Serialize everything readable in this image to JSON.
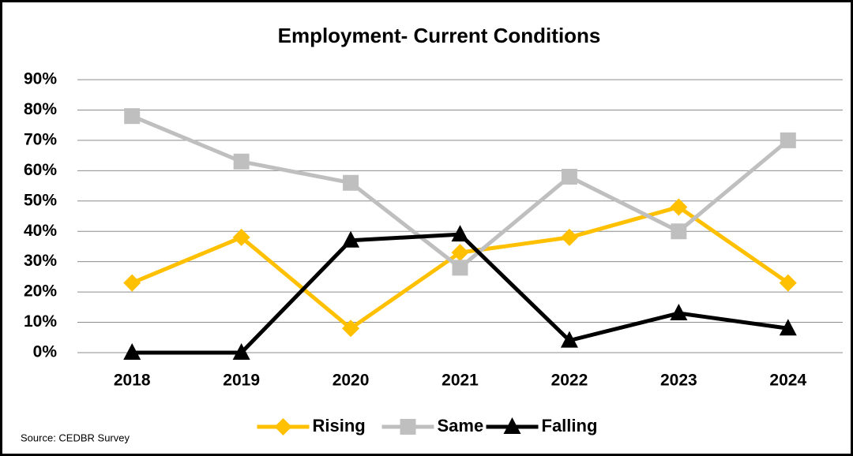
{
  "chart_data": {
    "type": "line",
    "title": "Employment- Current Conditions",
    "categories": [
      "2018",
      "2019",
      "2020",
      "2021",
      "2022",
      "2023",
      "2024"
    ],
    "series": [
      {
        "name": "Rising",
        "color": "#FFC000",
        "marker": "diamond",
        "values": [
          23,
          38,
          8,
          33,
          38,
          48,
          23
        ]
      },
      {
        "name": "Same",
        "color": "#BFBFBF",
        "marker": "square",
        "values": [
          78,
          63,
          56,
          28,
          58,
          40,
          70
        ]
      },
      {
        "name": "Falling",
        "color": "#000000",
        "marker": "triangle",
        "values": [
          0,
          0,
          37,
          39,
          4,
          13,
          8
        ]
      }
    ],
    "ylim": [
      0,
      90
    ],
    "yticks": [
      {
        "value": 0,
        "label": "0%"
      },
      {
        "value": 10,
        "label": "10%"
      },
      {
        "value": 20,
        "label": "20%"
      },
      {
        "value": 30,
        "label": "30%"
      },
      {
        "value": 40,
        "label": "40%"
      },
      {
        "value": 50,
        "label": "50%"
      },
      {
        "value": 60,
        "label": "60%"
      },
      {
        "value": 70,
        "label": "70%"
      },
      {
        "value": 80,
        "label": "80%"
      },
      {
        "value": 90,
        "label": "90%"
      }
    ],
    "grid": true,
    "legend": "bottom",
    "source": "Source: CEDBR  Survey"
  }
}
